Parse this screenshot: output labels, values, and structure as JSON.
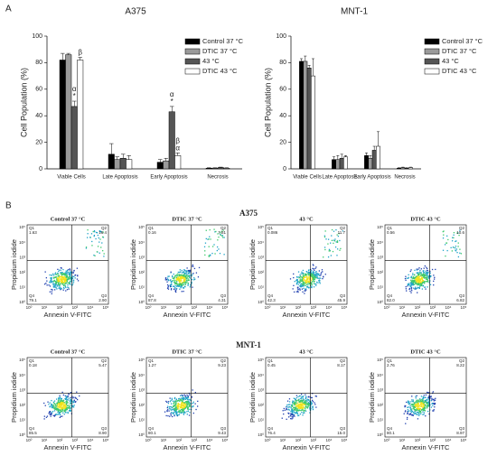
{
  "chart_data": [
    {
      "type": "bar",
      "title": "A375",
      "ylabel": "Cell Population (%)",
      "categories": [
        "Viable Cells",
        "Late Apoptosis",
        "Early Apoptosis",
        "Necrosis"
      ],
      "series": [
        {
          "name": "Control 37 °C",
          "color": "#000000",
          "values": [
            82,
            11,
            5,
            0.5
          ],
          "errors": [
            5,
            8,
            2,
            0.3
          ]
        },
        {
          "name": "DTIC 37 °C",
          "color": "#9a9a9a",
          "values": [
            86,
            7,
            6,
            0.5
          ],
          "errors": [
            1,
            2,
            2,
            0.3
          ]
        },
        {
          "name": "43 °C",
          "color": "#555555",
          "values": [
            47,
            8,
            43,
            1
          ],
          "errors": [
            4,
            3,
            4,
            0.3
          ]
        },
        {
          "name": "DTIC 43 °C",
          "color": "#ffffff",
          "values": [
            82,
            7,
            10,
            0.5
          ],
          "errors": [
            2,
            3,
            2,
            0.3
          ]
        }
      ],
      "ylim": [
        0,
        100
      ],
      "yticks": [
        0,
        20,
        40,
        60,
        80,
        100
      ],
      "annotations": [
        {
          "text": "*",
          "series": 2,
          "category": 0
        },
        {
          "text": "α",
          "series": 2,
          "category": 0
        },
        {
          "text": "β",
          "series": 3,
          "category": 0
        },
        {
          "text": "*",
          "series": 2,
          "category": 2
        },
        {
          "text": "α",
          "series": 2,
          "category": 2
        },
        {
          "text": "α",
          "series": 3,
          "category": 2
        },
        {
          "text": "β",
          "series": 3,
          "category": 2
        }
      ]
    },
    {
      "type": "bar",
      "title": "MNT-1",
      "ylabel": "Cell Population (%)",
      "categories": [
        "Viable Cells",
        "Late Apoptosis",
        "Early Apoptosis",
        "Necrosis"
      ],
      "series": [
        {
          "name": "Control 37 °C",
          "color": "#000000",
          "values": [
            81,
            7,
            10,
            0.5
          ],
          "errors": [
            2,
            2,
            2,
            0.3
          ]
        },
        {
          "name": "DTIC 37 °C",
          "color": "#9a9a9a",
          "values": [
            81,
            7,
            8,
            1
          ],
          "errors": [
            4,
            3,
            2,
            0.3
          ]
        },
        {
          "name": "43 °C",
          "color": "#555555",
          "values": [
            76,
            8,
            14,
            0.5
          ],
          "errors": [
            2,
            3,
            3,
            0.3
          ]
        },
        {
          "name": "DTIC 43 °C",
          "color": "#ffffff",
          "values": [
            70,
            9,
            17,
            1
          ],
          "errors": [
            13,
            1,
            11,
            0.3
          ]
        }
      ],
      "ylim": [
        0,
        100
      ],
      "yticks": [
        0,
        20,
        40,
        60,
        80,
        100
      ],
      "annotations": []
    }
  ],
  "panel_labels": [
    "A",
    "B"
  ],
  "flow": {
    "xlabel": "Annexin V-FITC",
    "ylabel": "Propidium iodide",
    "axis_ticks": [
      "10⁰",
      "10¹",
      "10²",
      "10³",
      "10⁴",
      "10⁵"
    ],
    "quadrant_names": [
      "Q1",
      "Q2",
      "Q4",
      "Q3"
    ],
    "sections": [
      {
        "title": "A375",
        "plots": [
          {
            "title": "Control 37 °C",
            "quadrants": [
              "1.63",
              "16.4",
              "79.1",
              "2.90"
            ]
          },
          {
            "title": "DTIC 37 °C",
            "quadrants": [
              "0.16",
              "7.81",
              "87.8",
              "4.31"
            ]
          },
          {
            "title": "43 °C",
            "quadrants": [
              "0.086",
              "11.7",
              "42.3",
              "45.9"
            ]
          },
          {
            "title": "DTIC 43 °C",
            "quadrants": [
              "0.56",
              "10.6",
              "82.0",
              "6.82"
            ]
          }
        ]
      },
      {
        "title": "MNT-1",
        "plots": [
          {
            "title": "Control 37 °C",
            "quadrants": [
              "0.18",
              "5.47",
              "85.5",
              "8.90"
            ]
          },
          {
            "title": "DTIC 37 °C",
            "quadrants": [
              "1.27",
              "9.23",
              "80.1",
              "9.43"
            ]
          },
          {
            "title": "43 °C",
            "quadrants": [
              "0.45",
              "8.17",
              "76.4",
              "15.0"
            ]
          },
          {
            "title": "DTIC 43 °C",
            "quadrants": [
              "2.76",
              "8.22",
              "80.1",
              "8.97"
            ]
          }
        ]
      }
    ]
  }
}
